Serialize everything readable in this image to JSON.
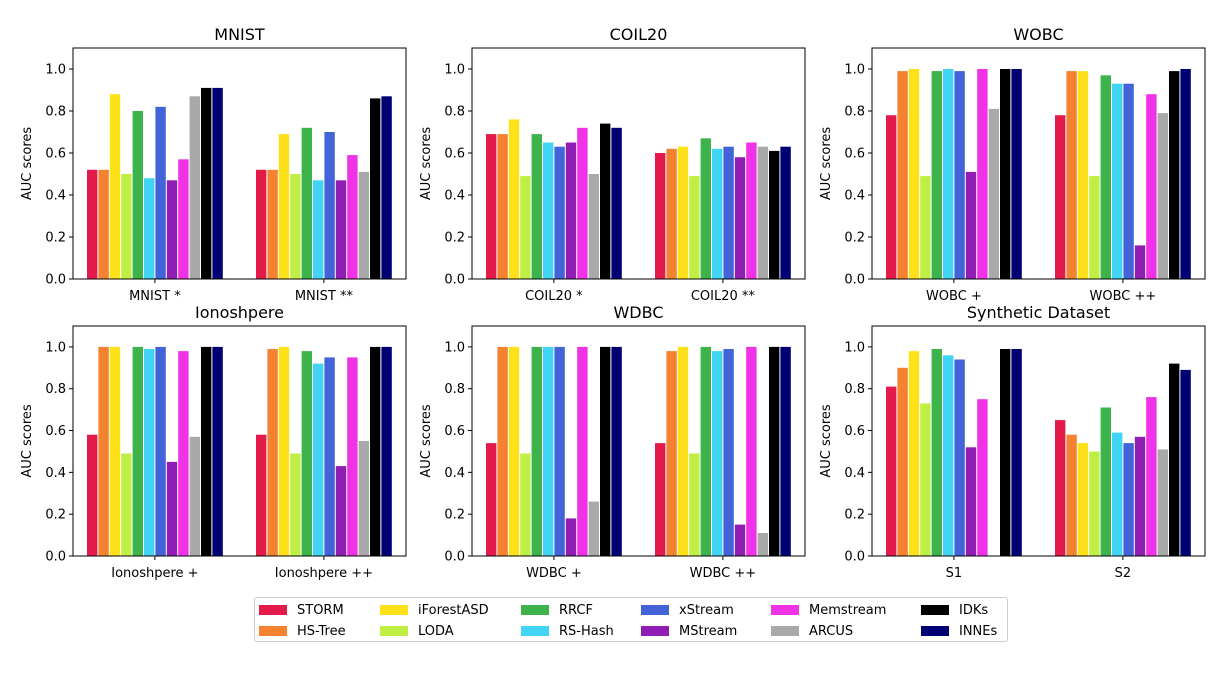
{
  "chart_data": [
    {
      "type": "bar",
      "title": "MNIST",
      "ylabel": "AUC scores",
      "xlabel": "",
      "ylim": [
        0,
        1.1
      ],
      "yticks": [
        "0.0",
        "0.2",
        "0.4",
        "0.6",
        "0.8",
        "1.0"
      ],
      "categories": [
        "MNIST *",
        "MNIST **"
      ],
      "series": [
        {
          "name": "STORM",
          "values": [
            0.52,
            0.52
          ]
        },
        {
          "name": "HS-Tree",
          "values": [
            0.52,
            0.52
          ]
        },
        {
          "name": "iForestASD",
          "values": [
            0.88,
            0.69
          ]
        },
        {
          "name": "LODA",
          "values": [
            0.5,
            0.5
          ]
        },
        {
          "name": "RRCF",
          "values": [
            0.8,
            0.72
          ]
        },
        {
          "name": "RS-Hash",
          "values": [
            0.48,
            0.47
          ]
        },
        {
          "name": "xStream",
          "values": [
            0.82,
            0.7
          ]
        },
        {
          "name": "MStream",
          "values": [
            0.47,
            0.47
          ]
        },
        {
          "name": "Memstream",
          "values": [
            0.57,
            0.59
          ]
        },
        {
          "name": "ARCUS",
          "values": [
            0.87,
            0.51
          ]
        },
        {
          "name": "IDKs",
          "values": [
            0.91,
            0.86
          ]
        },
        {
          "name": "INNEs",
          "values": [
            0.91,
            0.87
          ]
        }
      ]
    },
    {
      "type": "bar",
      "title": "COIL20",
      "ylabel": "AUC scores",
      "xlabel": "",
      "ylim": [
        0,
        1.1
      ],
      "yticks": [
        "0.0",
        "0.2",
        "0.4",
        "0.6",
        "0.8",
        "1.0"
      ],
      "categories": [
        "COIL20 *",
        "COIL20 **"
      ],
      "series": [
        {
          "name": "STORM",
          "values": [
            0.69,
            0.6
          ]
        },
        {
          "name": "HS-Tree",
          "values": [
            0.69,
            0.62
          ]
        },
        {
          "name": "iForestASD",
          "values": [
            0.76,
            0.63
          ]
        },
        {
          "name": "LODA",
          "values": [
            0.49,
            0.49
          ]
        },
        {
          "name": "RRCF",
          "values": [
            0.69,
            0.67
          ]
        },
        {
          "name": "RS-Hash",
          "values": [
            0.65,
            0.62
          ]
        },
        {
          "name": "xStream",
          "values": [
            0.63,
            0.63
          ]
        },
        {
          "name": "MStream",
          "values": [
            0.65,
            0.58
          ]
        },
        {
          "name": "Memstream",
          "values": [
            0.72,
            0.65
          ]
        },
        {
          "name": "ARCUS",
          "values": [
            0.5,
            0.63
          ]
        },
        {
          "name": "IDKs",
          "values": [
            0.74,
            0.61
          ]
        },
        {
          "name": "INNEs",
          "values": [
            0.72,
            0.63
          ]
        }
      ]
    },
    {
      "type": "bar",
      "title": "WOBC",
      "ylabel": "AUC scores",
      "xlabel": "",
      "ylim": [
        0,
        1.1
      ],
      "yticks": [
        "0.0",
        "0.2",
        "0.4",
        "0.6",
        "0.8",
        "1.0"
      ],
      "categories": [
        "WOBC +",
        "WOBC ++"
      ],
      "series": [
        {
          "name": "STORM",
          "values": [
            0.78,
            0.78
          ]
        },
        {
          "name": "HS-Tree",
          "values": [
            0.99,
            0.99
          ]
        },
        {
          "name": "iForestASD",
          "values": [
            1.0,
            0.99
          ]
        },
        {
          "name": "LODA",
          "values": [
            0.49,
            0.49
          ]
        },
        {
          "name": "RRCF",
          "values": [
            0.99,
            0.97
          ]
        },
        {
          "name": "RS-Hash",
          "values": [
            1.0,
            0.93
          ]
        },
        {
          "name": "xStream",
          "values": [
            0.99,
            0.93
          ]
        },
        {
          "name": "MStream",
          "values": [
            0.51,
            0.16
          ]
        },
        {
          "name": "Memstream",
          "values": [
            1.0,
            0.88
          ]
        },
        {
          "name": "ARCUS",
          "values": [
            0.81,
            0.79
          ]
        },
        {
          "name": "IDKs",
          "values": [
            1.0,
            0.99
          ]
        },
        {
          "name": "INNEs",
          "values": [
            1.0,
            1.0
          ]
        }
      ]
    },
    {
      "type": "bar",
      "title": "Ionoshpere",
      "ylabel": "AUC scores",
      "xlabel": "",
      "ylim": [
        0,
        1.1
      ],
      "yticks": [
        "0.0",
        "0.2",
        "0.4",
        "0.6",
        "0.8",
        "1.0"
      ],
      "categories": [
        "Ionoshpere +",
        "Ionoshpere ++"
      ],
      "series": [
        {
          "name": "STORM",
          "values": [
            0.58,
            0.58
          ]
        },
        {
          "name": "HS-Tree",
          "values": [
            1.0,
            0.99
          ]
        },
        {
          "name": "iForestASD",
          "values": [
            1.0,
            1.0
          ]
        },
        {
          "name": "LODA",
          "values": [
            0.49,
            0.49
          ]
        },
        {
          "name": "RRCF",
          "values": [
            1.0,
            0.98
          ]
        },
        {
          "name": "RS-Hash",
          "values": [
            0.99,
            0.92
          ]
        },
        {
          "name": "xStream",
          "values": [
            1.0,
            0.95
          ]
        },
        {
          "name": "MStream",
          "values": [
            0.45,
            0.43
          ]
        },
        {
          "name": "Memstream",
          "values": [
            0.98,
            0.95
          ]
        },
        {
          "name": "ARCUS",
          "values": [
            0.57,
            0.55
          ]
        },
        {
          "name": "IDKs",
          "values": [
            1.0,
            1.0
          ]
        },
        {
          "name": "INNEs",
          "values": [
            1.0,
            1.0
          ]
        }
      ]
    },
    {
      "type": "bar",
      "title": "WDBC",
      "ylabel": "AUC scores",
      "xlabel": "",
      "ylim": [
        0,
        1.1
      ],
      "yticks": [
        "0.0",
        "0.2",
        "0.4",
        "0.6",
        "0.8",
        "1.0"
      ],
      "categories": [
        "WDBC +",
        "WDBC ++"
      ],
      "series": [
        {
          "name": "STORM",
          "values": [
            0.54,
            0.54
          ]
        },
        {
          "name": "HS-Tree",
          "values": [
            1.0,
            0.98
          ]
        },
        {
          "name": "iForestASD",
          "values": [
            1.0,
            1.0
          ]
        },
        {
          "name": "LODA",
          "values": [
            0.49,
            0.49
          ]
        },
        {
          "name": "RRCF",
          "values": [
            1.0,
            1.0
          ]
        },
        {
          "name": "RS-Hash",
          "values": [
            1.0,
            0.98
          ]
        },
        {
          "name": "xStream",
          "values": [
            1.0,
            0.99
          ]
        },
        {
          "name": "MStream",
          "values": [
            0.18,
            0.15
          ]
        },
        {
          "name": "Memstream",
          "values": [
            1.0,
            1.0
          ]
        },
        {
          "name": "ARCUS",
          "values": [
            0.26,
            0.11
          ]
        },
        {
          "name": "IDKs",
          "values": [
            1.0,
            1.0
          ]
        },
        {
          "name": "INNEs",
          "values": [
            1.0,
            1.0
          ]
        }
      ]
    },
    {
      "type": "bar",
      "title": "Synthetic Dataset",
      "ylabel": "AUC scores",
      "xlabel": "",
      "ylim": [
        0,
        1.1
      ],
      "yticks": [
        "0.0",
        "0.2",
        "0.4",
        "0.6",
        "0.8",
        "1.0"
      ],
      "categories": [
        "S1",
        "S2"
      ],
      "series": [
        {
          "name": "STORM",
          "values": [
            0.81,
            0.65
          ]
        },
        {
          "name": "HS-Tree",
          "values": [
            0.9,
            0.58
          ]
        },
        {
          "name": "iForestASD",
          "values": [
            0.98,
            0.54
          ]
        },
        {
          "name": "LODA",
          "values": [
            0.73,
            0.5
          ]
        },
        {
          "name": "RRCF",
          "values": [
            0.99,
            0.71
          ]
        },
        {
          "name": "RS-Hash",
          "values": [
            0.96,
            0.59
          ]
        },
        {
          "name": "xStream",
          "values": [
            0.94,
            0.54
          ]
        },
        {
          "name": "MStream",
          "values": [
            0.52,
            0.57
          ]
        },
        {
          "name": "Memstream",
          "values": [
            0.75,
            0.76
          ]
        },
        {
          "name": "ARCUS",
          "values": [
            null,
            0.51
          ]
        },
        {
          "name": "IDKs",
          "values": [
            0.99,
            0.92
          ]
        },
        {
          "name": "INNEs",
          "values": [
            0.99,
            0.89
          ]
        }
      ]
    }
  ],
  "colors": {
    "STORM": "#e31a4a",
    "HS-Tree": "#f58231",
    "iForestASD": "#ffe119",
    "LODA": "#bfef45",
    "RRCF": "#3cb44b",
    "RS-Hash": "#42d4f4",
    "xStream": "#4363d8",
    "MStream": "#911eb4",
    "Memstream": "#f032e6",
    "ARCUS": "#a9a9a9",
    "IDKs": "#000000",
    "INNEs": "#000075"
  },
  "legend": {
    "position": "bottom-center",
    "columns": [
      [
        "STORM",
        "HS-Tree"
      ],
      [
        "iForestASD",
        "LODA"
      ],
      [
        "RRCF",
        "RS-Hash"
      ],
      [
        "xStream",
        "MStream"
      ],
      [
        "Memstream",
        "ARCUS"
      ],
      [
        "IDKs",
        "INNEs"
      ]
    ]
  }
}
